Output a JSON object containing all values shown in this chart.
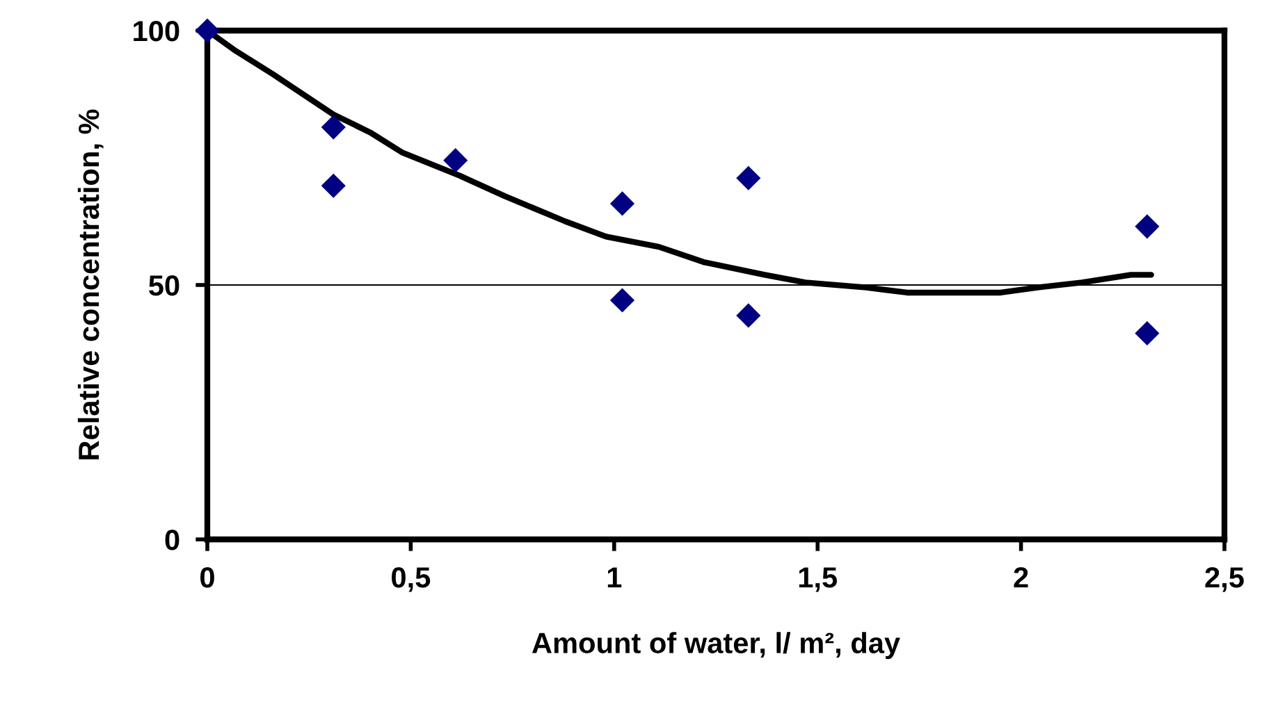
{
  "chart_data": {
    "type": "scatter",
    "xlabel": "Amount of water, l/ m², day",
    "ylabel": "Relative concentration, %",
    "xlim": [
      0,
      2.5
    ],
    "ylim": [
      0,
      100
    ],
    "xticks": [
      0,
      {
        "value": 0.5,
        "label": "0,5"
      },
      1,
      {
        "value": 1.5,
        "label": "1,5"
      },
      2,
      {
        "value": 2.5,
        "label": "2,5"
      }
    ],
    "yticks": [
      0,
      50,
      100
    ],
    "grid": "y",
    "series": [
      {
        "color": "#000080",
        "marker": "diamond",
        "x": [
          0,
          0.31,
          0.31,
          0.61,
          1.02,
          1.02,
          1.33,
          1.33,
          2.31,
          2.31
        ],
        "values": [
          100,
          81,
          69.5,
          74.5,
          66,
          47,
          71,
          44,
          61.5,
          40.5
        ]
      },
      {
        "type": "line",
        "color": "#000000",
        "marker": "none",
        "line_style": "solid",
        "x": [
          0,
          0.07,
          0.16,
          0.31,
          0.4,
          0.48,
          0.62,
          0.73,
          0.88,
          0.98,
          1.11,
          1.22,
          1.37,
          1.47,
          1.62,
          1.72,
          1.95,
          2.04,
          2.15,
          2.27,
          2.32
        ],
        "values": [
          100,
          96,
          91.5,
          83.5,
          80,
          76,
          71.5,
          67.5,
          62.5,
          59.5,
          57.5,
          54.5,
          52,
          50.5,
          49.5,
          48.5,
          48.5,
          49.5,
          50.5,
          52,
          52
        ]
      }
    ]
  }
}
